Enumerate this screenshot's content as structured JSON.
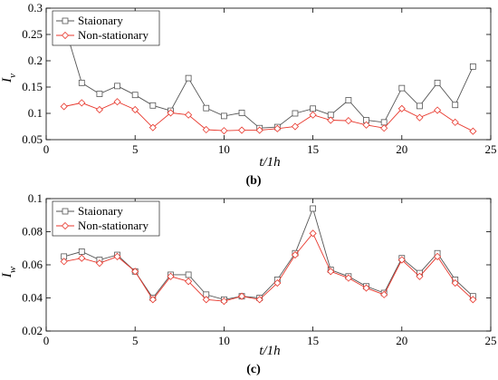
{
  "chart_data": [
    {
      "type": "line",
      "caption": "(b)",
      "xlabel": "t/1h",
      "ylabel": "I_v",
      "ylabel_main": "I",
      "ylabel_sub": "v",
      "xlim": [
        0,
        25
      ],
      "ylim": [
        0.05,
        0.3
      ],
      "xticks": [
        0,
        5,
        10,
        15,
        20,
        25
      ],
      "yticks": [
        0.05,
        0.1,
        0.15,
        0.2,
        0.25,
        0.3
      ],
      "ytick_labels": [
        "0.05",
        "0.1",
        "0.15",
        "0.2",
        "0.25",
        "0.3"
      ],
      "grid": false,
      "legend_position": "top-left",
      "x": [
        1,
        2,
        3,
        4,
        5,
        6,
        7,
        8,
        9,
        10,
        11,
        12,
        13,
        14,
        15,
        16,
        17,
        18,
        19,
        20,
        21,
        22,
        23,
        24
      ],
      "series": [
        {
          "name": "Staionary",
          "color": "#555555",
          "marker": "square",
          "values": [
            0.27,
            0.158,
            0.137,
            0.152,
            0.135,
            0.115,
            0.105,
            0.167,
            0.11,
            0.095,
            0.101,
            0.072,
            0.074,
            0.1,
            0.109,
            0.097,
            0.125,
            0.087,
            0.083,
            0.148,
            0.114,
            0.158,
            0.116,
            0.189
          ]
        },
        {
          "name": "Non-stationary",
          "color": "#e8372c",
          "marker": "diamond",
          "values": [
            0.113,
            0.12,
            0.107,
            0.122,
            0.107,
            0.073,
            0.101,
            0.097,
            0.069,
            0.067,
            0.068,
            0.068,
            0.071,
            0.075,
            0.097,
            0.087,
            0.086,
            0.078,
            0.072,
            0.109,
            0.092,
            0.106,
            0.083,
            0.066
          ]
        }
      ]
    },
    {
      "type": "line",
      "caption": "(c)",
      "xlabel": "t/1h",
      "ylabel": "I_w",
      "ylabel_main": "I",
      "ylabel_sub": "w",
      "xlim": [
        0,
        25
      ],
      "ylim": [
        0.02,
        0.1
      ],
      "xticks": [
        0,
        5,
        10,
        15,
        20,
        25
      ],
      "yticks": [
        0.02,
        0.04,
        0.06,
        0.08,
        0.1
      ],
      "ytick_labels": [
        "0.02",
        "0.04",
        "0.06",
        "0.08",
        "0.1"
      ],
      "grid": false,
      "legend_position": "top-left",
      "x": [
        1,
        2,
        3,
        4,
        5,
        6,
        7,
        8,
        9,
        10,
        11,
        12,
        13,
        14,
        15,
        16,
        17,
        18,
        19,
        20,
        21,
        22,
        23,
        24
      ],
      "series": [
        {
          "name": "Staionary",
          "color": "#555555",
          "marker": "square",
          "values": [
            0.065,
            0.068,
            0.063,
            0.066,
            0.056,
            0.04,
            0.054,
            0.054,
            0.042,
            0.039,
            0.041,
            0.04,
            0.051,
            0.067,
            0.094,
            0.057,
            0.053,
            0.047,
            0.043,
            0.064,
            0.055,
            0.067,
            0.051,
            0.041
          ]
        },
        {
          "name": "Non-stationary",
          "color": "#e8372c",
          "marker": "diamond",
          "values": [
            0.062,
            0.064,
            0.061,
            0.065,
            0.056,
            0.039,
            0.053,
            0.05,
            0.039,
            0.038,
            0.041,
            0.039,
            0.049,
            0.066,
            0.079,
            0.056,
            0.052,
            0.046,
            0.042,
            0.063,
            0.053,
            0.065,
            0.049,
            0.039
          ]
        }
      ]
    }
  ]
}
